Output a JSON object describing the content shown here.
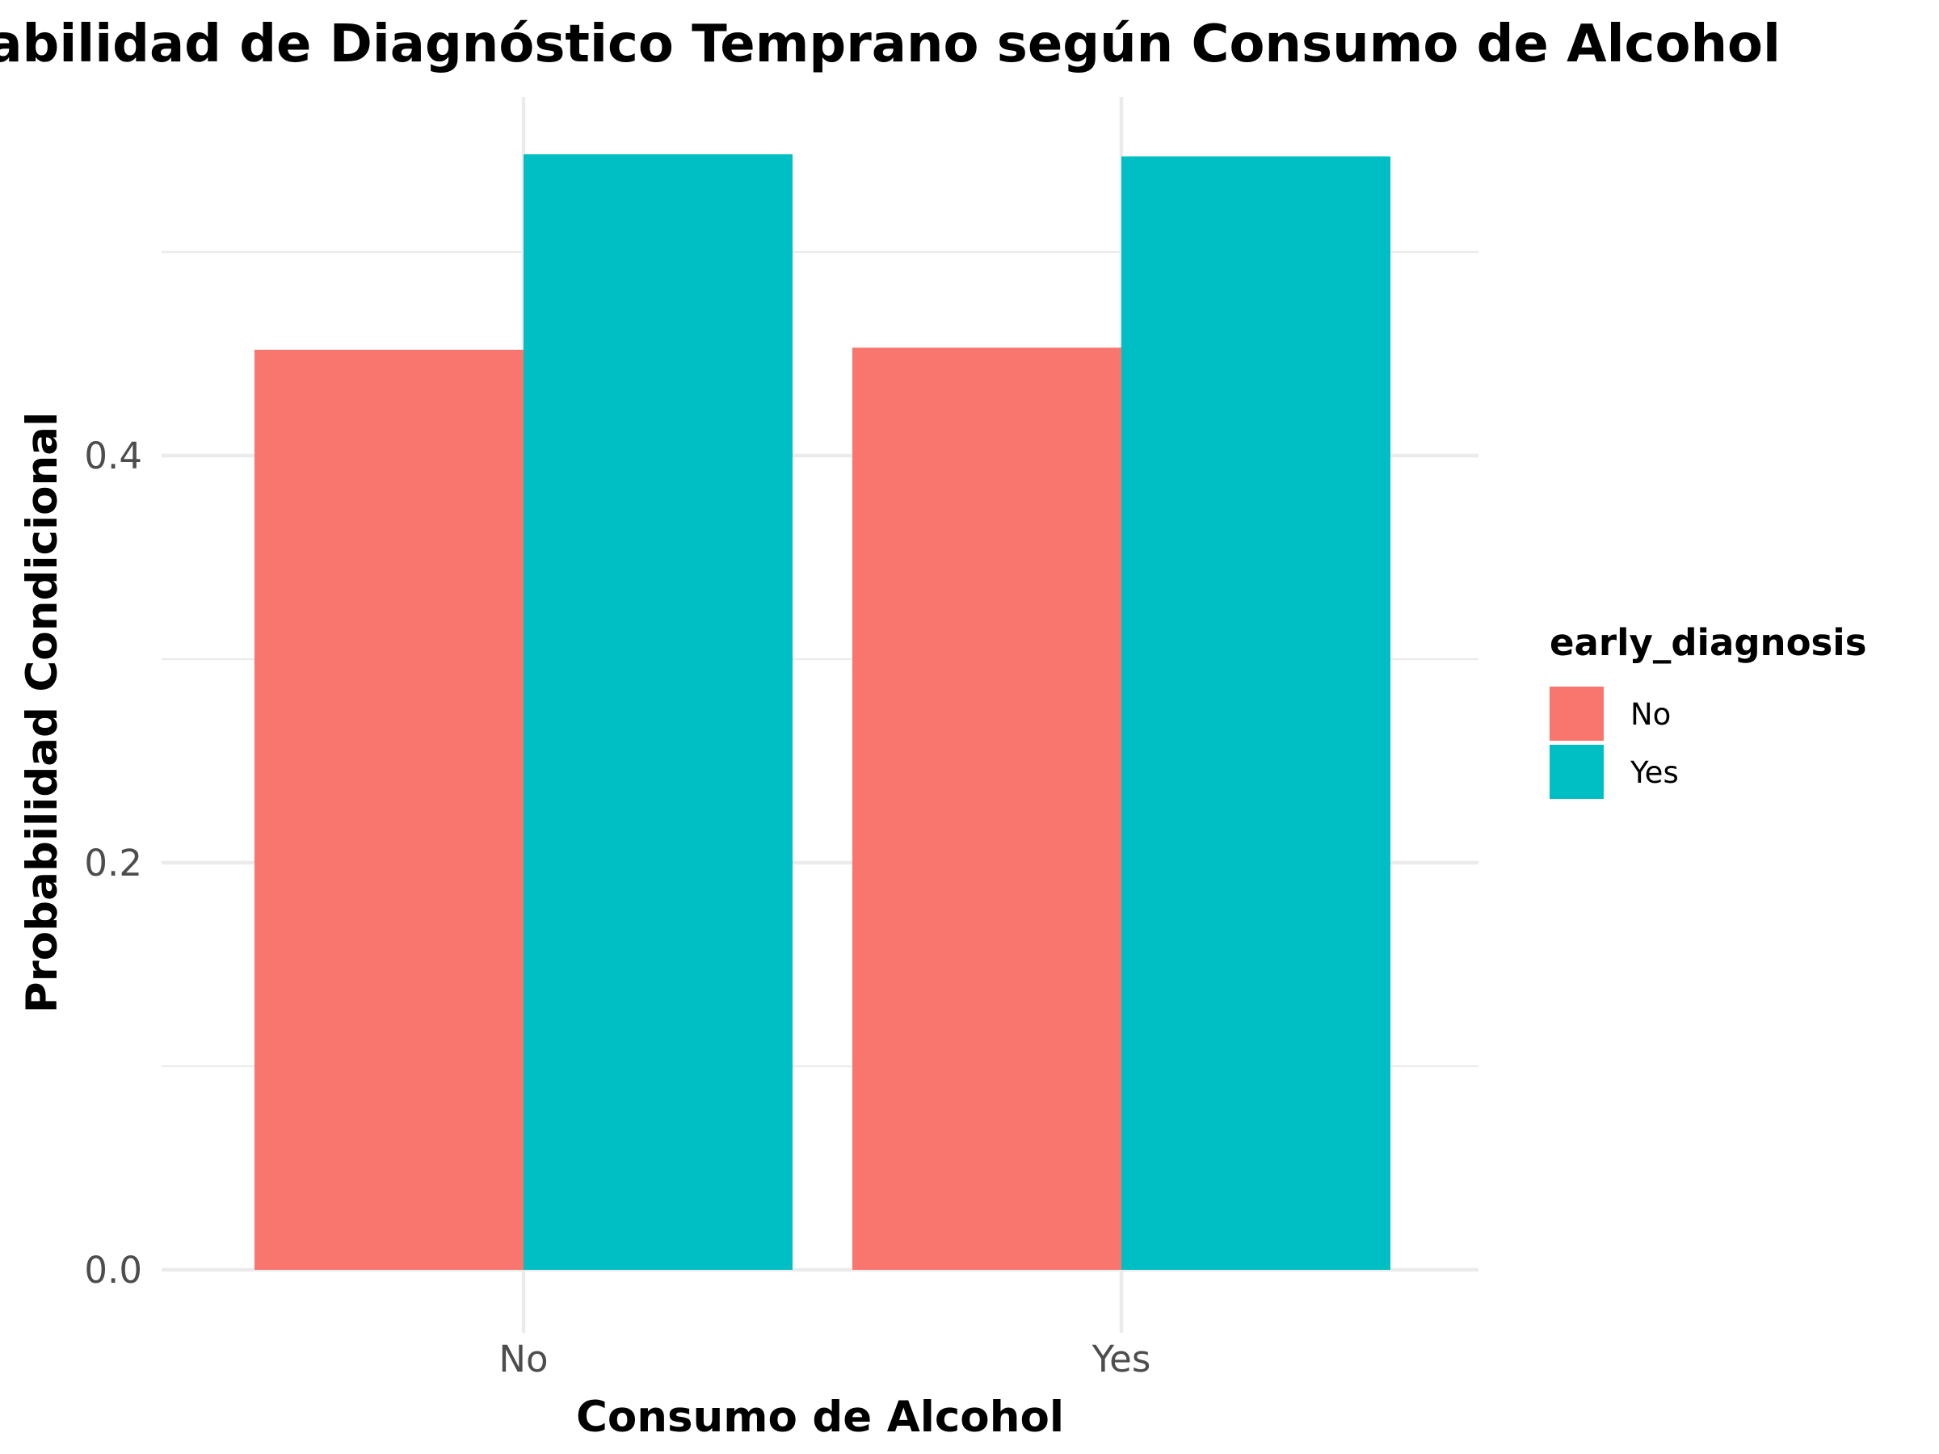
{
  "chart_data": {
    "type": "bar",
    "title": "Probabilidad de Diagnóstico Temprano según Consumo de Alcohol",
    "xlabel": "Consumo de Alcohol",
    "ylabel": "Probabilidad Condicional",
    "categories": [
      "No",
      "Yes"
    ],
    "series": [
      {
        "name": "No",
        "values": [
          0.452,
          0.453
        ],
        "color": "#F8766D"
      },
      {
        "name": "Yes",
        "values": [
          0.548,
          0.547
        ],
        "color": "#00BFC4"
      }
    ],
    "ylim": [
      0,
      0.575
    ],
    "yticks": [
      0.0,
      0.2,
      0.4
    ],
    "ytick_labels": [
      "0.0",
      "0.2",
      "0.4"
    ],
    "grid": true,
    "legend": {
      "title": "early_diagnosis",
      "placement": "right",
      "entries": [
        "No",
        "Yes"
      ]
    }
  }
}
